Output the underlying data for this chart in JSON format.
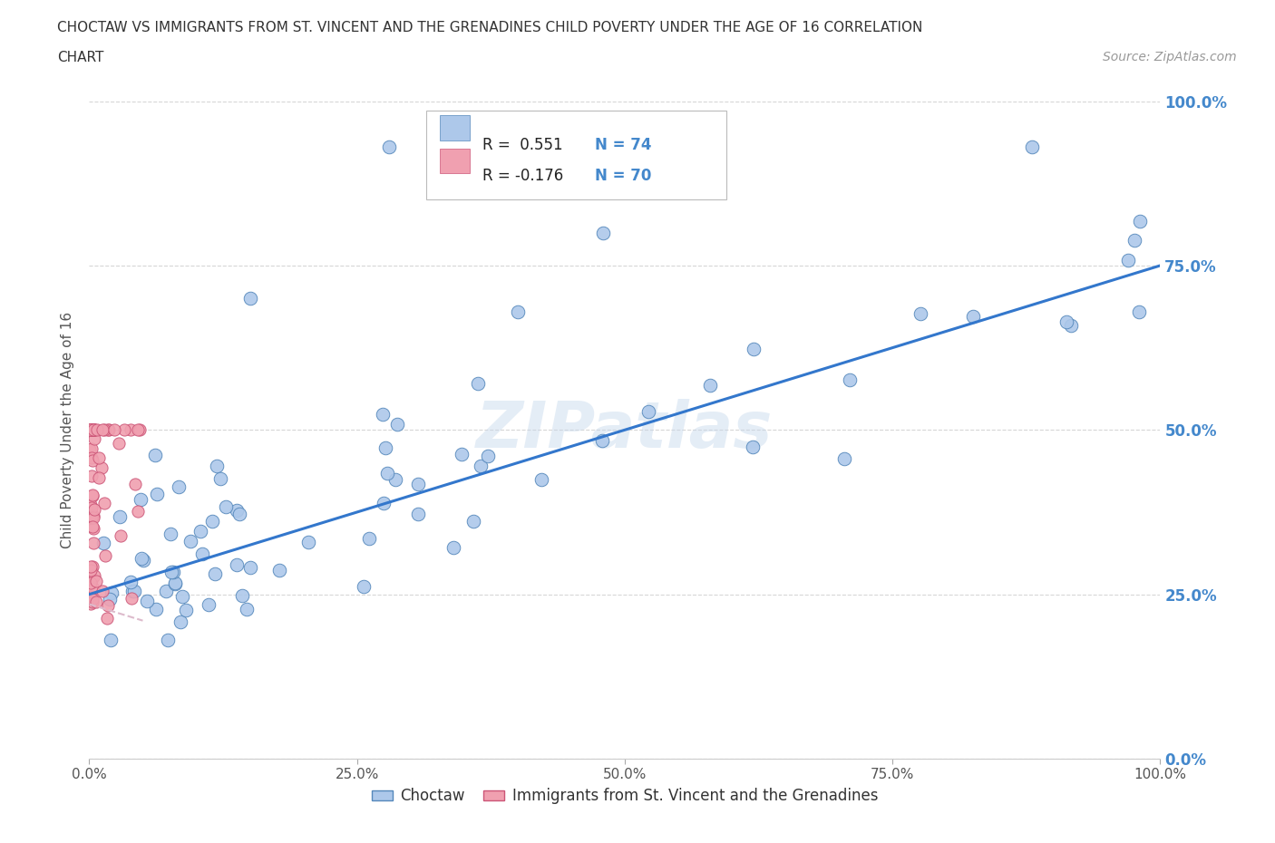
{
  "title_line1": "CHOCTAW VS IMMIGRANTS FROM ST. VINCENT AND THE GRENADINES CHILD POVERTY UNDER THE AGE OF 16 CORRELATION",
  "title_line2": "CHART",
  "source_text": "Source: ZipAtlas.com",
  "ylabel": "Child Poverty Under the Age of 16",
  "watermark": "ZIPatlas",
  "choctaw_color": "#adc8ea",
  "choctaw_edge_color": "#5588bb",
  "immigrants_color": "#f0a0b0",
  "immigrants_edge_color": "#cc5577",
  "trend_line_color": "#3377cc",
  "trend_line_color2": "#ddbbcc",
  "background_color": "#ffffff",
  "right_tick_color": "#4488cc",
  "title_color": "#333333",
  "source_color": "#999999"
}
